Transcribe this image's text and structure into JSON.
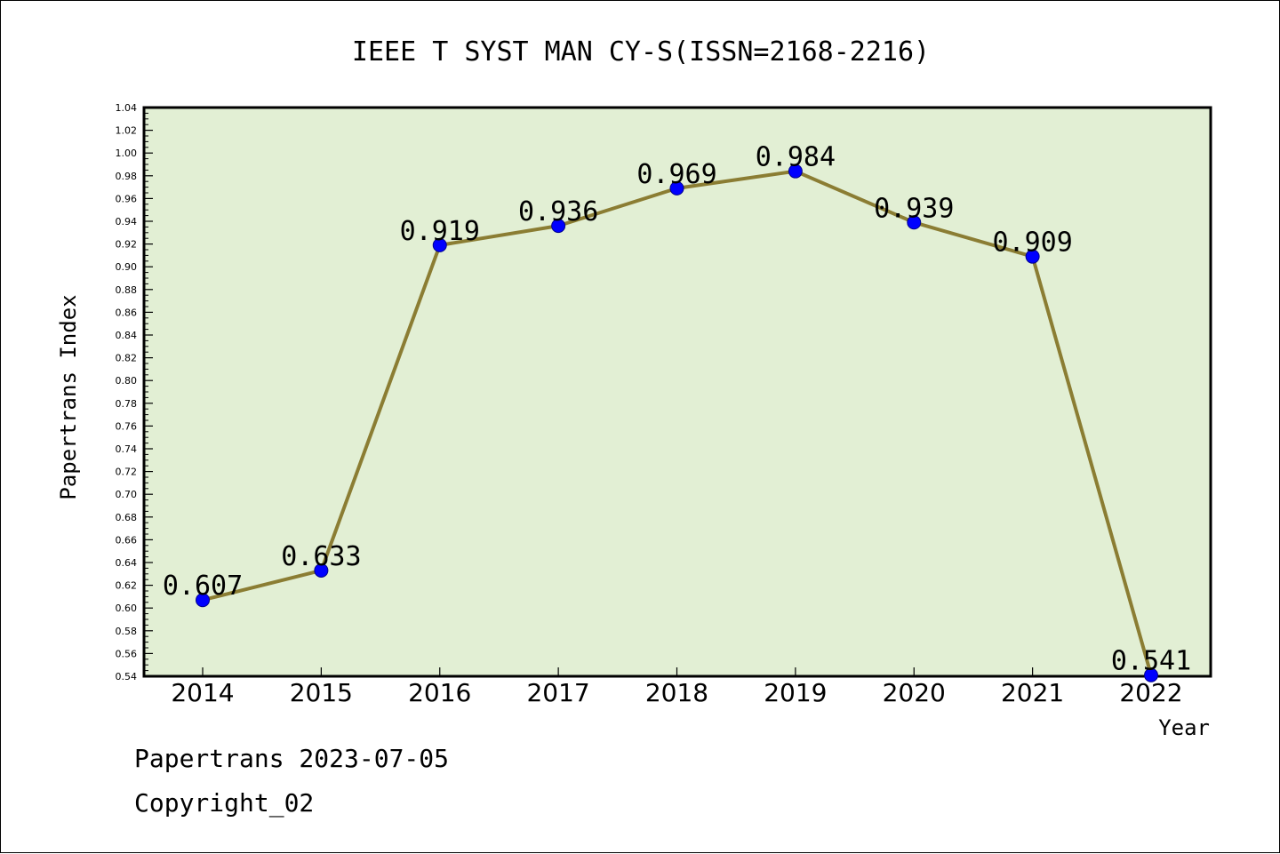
{
  "chart_data": {
    "type": "line",
    "title": "IEEE T SYST MAN CY-S(ISSN=2168-2216)",
    "xlabel": "Year",
    "ylabel": "Papertrans Index",
    "categories": [
      "2014",
      "2015",
      "2016",
      "2017",
      "2018",
      "2019",
      "2020",
      "2021",
      "2022"
    ],
    "series": [
      {
        "values": [
          0.607,
          0.633,
          0.919,
          0.936,
          0.969,
          0.984,
          0.939,
          0.909,
          0.541
        ],
        "data_labels": [
          "0.607",
          "0.633",
          "0.919",
          "0.936",
          "0.969",
          "0.984",
          "0.939",
          "0.909",
          "0.541"
        ]
      }
    ],
    "ylim": [
      0.54,
      1.04
    ],
    "y_tick_labels": [
      "0.54",
      "0.56",
      "0.58",
      "0.60",
      "0.62",
      "0.64",
      "0.66",
      "0.68",
      "0.70",
      "0.72",
      "0.74",
      "0.76",
      "0.78",
      "0.80",
      "0.82",
      "0.84",
      "0.86",
      "0.88",
      "0.90",
      "0.92",
      "0.94",
      "0.96",
      "0.98",
      "1.00",
      "1.02",
      "1.04"
    ],
    "grid": false,
    "legend": "none",
    "colors": {
      "plot_background": "#e2efd4",
      "line": "#8b7d33",
      "marker": "#0000ff",
      "marker_edge": "#00008b",
      "axis": "#000000"
    }
  },
  "footer": {
    "source": "Papertrans 2023-07-05",
    "copyright": "Copyright_02"
  }
}
